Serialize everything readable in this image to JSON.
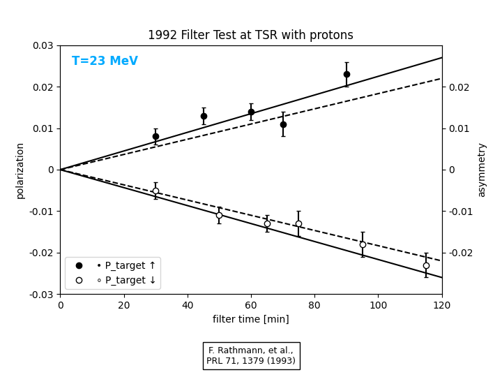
{
  "chart_data": {
    "type": "scatter",
    "title": "1992 Filter Test at TSR with protons",
    "x_label": "filter time [min]",
    "y_label": "polarization",
    "y2_label": "asymmetry",
    "xlim": [
      0,
      120
    ],
    "xticks": [
      0,
      20,
      40,
      60,
      80,
      100,
      120
    ],
    "ylim": [
      -0.03,
      0.03
    ],
    "yticks": [
      -0.03,
      -0.02,
      -0.01,
      0,
      0.01,
      0.02,
      0.03
    ],
    "y2lim": [
      -0.03,
      0.03
    ],
    "y2ticks": [
      -0.02,
      -0.01,
      0,
      0.01,
      0.02
    ],
    "legend": "lower left",
    "series": [
      {
        "name": "• P_target ↑",
        "type": "scatter",
        "marker": "filled",
        "color": "#000000",
        "x": [
          30,
          45,
          60,
          70,
          90
        ],
        "values": [
          0.008,
          0.013,
          0.014,
          0.011,
          0.023
        ],
        "yerr": [
          0.002,
          0.002,
          0.002,
          0.003,
          0.003
        ]
      },
      {
        "name": "∘ P_target ↓",
        "type": "scatter",
        "marker": "open",
        "color": "#000000",
        "x": [
          30,
          50,
          65,
          75,
          95,
          115
        ],
        "values": [
          -0.005,
          -0.011,
          -0.013,
          -0.013,
          -0.018,
          -0.023
        ],
        "yerr": [
          0.002,
          0.002,
          0.002,
          0.003,
          0.003,
          0.003
        ]
      },
      {
        "type": "line",
        "line_style": "solid",
        "color": "#000000",
        "x": [
          0,
          120
        ],
        "values": [
          0.0,
          0.027
        ]
      },
      {
        "type": "line",
        "line_style": "solid",
        "color": "#000000",
        "x": [
          0,
          120
        ],
        "values": [
          0.0,
          -0.026
        ]
      },
      {
        "type": "line",
        "line_style": "dashed",
        "color": "#000000",
        "x": [
          0,
          120
        ],
        "values": [
          0.0,
          0.022
        ]
      },
      {
        "type": "line",
        "line_style": "dashed",
        "color": "#000000",
        "x": [
          0,
          120
        ],
        "values": [
          0.0,
          -0.022
        ]
      }
    ],
    "annotations": [
      {
        "text": "T=23 MeV",
        "color": "#00aaff"
      },
      {
        "text": "F. Rathmann, et al.,\nPRL 71, 1379 (1993)"
      }
    ]
  }
}
